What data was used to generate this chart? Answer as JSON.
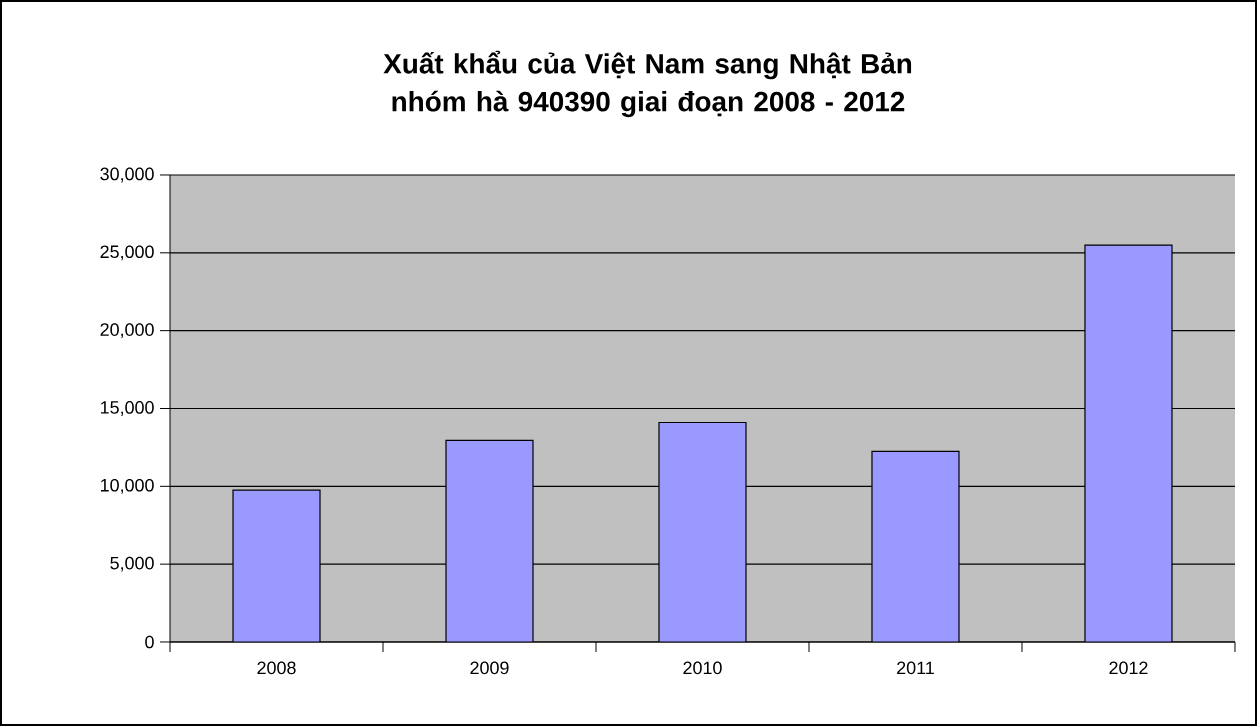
{
  "chart_data": {
    "type": "bar",
    "title": "Xuất khẩu của Việt Nam sang Nhật Bản nhóm hà 940390 giai đoạn 2008 - 2012",
    "categories": [
      "2008",
      "2009",
      "2010",
      "2011",
      "2012"
    ],
    "values": [
      9750,
      12950,
      14100,
      12250,
      25500
    ],
    "color": "#9999ff",
    "ylim": [
      0,
      30000
    ],
    "yticks": [
      {
        "value": 0,
        "label": "0"
      },
      {
        "value": 5000,
        "label": "5,000"
      },
      {
        "value": 10000,
        "label": "10,000"
      },
      {
        "value": 15000,
        "label": "15,000"
      },
      {
        "value": 20000,
        "label": "20,000"
      },
      {
        "value": 25000,
        "label": "25,000"
      },
      {
        "value": 30000,
        "label": "30,000"
      }
    ],
    "grid": "y"
  }
}
